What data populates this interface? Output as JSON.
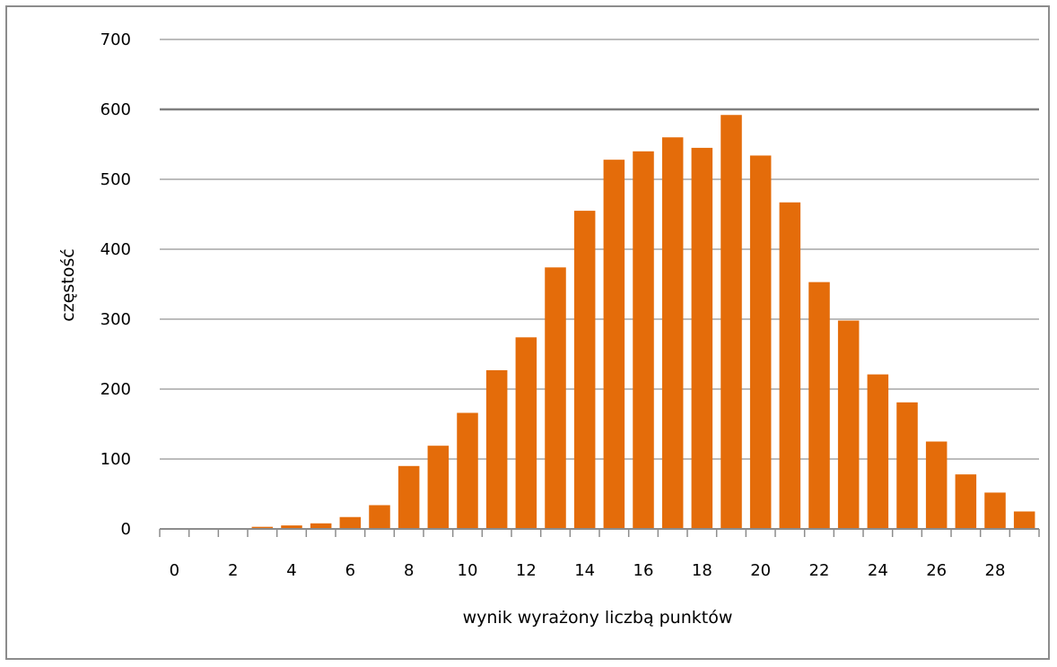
{
  "chart_data": {
    "type": "bar",
    "title": "",
    "xlabel": "wynik wyrażony liczbą punktów",
    "ylabel": "częstość",
    "ylim": [
      0,
      700
    ],
    "yticks": [
      0,
      100,
      200,
      300,
      400,
      500,
      600,
      700
    ],
    "xticks": [
      0,
      2,
      4,
      6,
      8,
      10,
      12,
      14,
      16,
      18,
      20,
      22,
      24,
      26,
      28
    ],
    "grid": true,
    "legend": "none",
    "bar_color": "#e46c0a",
    "categories": [
      0,
      1,
      2,
      3,
      4,
      5,
      6,
      7,
      8,
      9,
      10,
      11,
      12,
      13,
      14,
      15,
      16,
      17,
      18,
      19,
      20,
      21,
      22,
      23,
      24,
      25,
      26,
      27,
      28,
      29
    ],
    "values": [
      0,
      0,
      0,
      3,
      5,
      8,
      17,
      34,
      90,
      119,
      166,
      227,
      274,
      374,
      455,
      528,
      540,
      560,
      545,
      592,
      534,
      467,
      353,
      298,
      221,
      181,
      125,
      78,
      52,
      25
    ]
  }
}
